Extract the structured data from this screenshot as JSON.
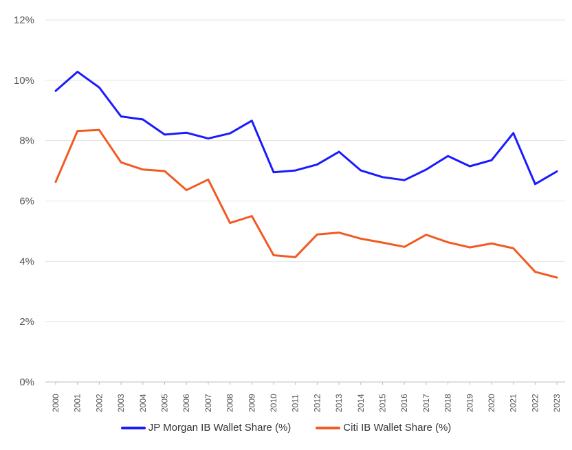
{
  "chart_data": {
    "type": "line",
    "x": [
      "2000",
      "2001",
      "2002",
      "2003",
      "2004",
      "2005",
      "2006",
      "2007",
      "2008",
      "2009",
      "2010",
      "2011",
      "2012",
      "2013",
      "2014",
      "2015",
      "2016",
      "2017",
      "2018",
      "2019",
      "2020",
      "2021",
      "2022",
      "2023"
    ],
    "series": [
      {
        "name": "JP Morgan IB Wallet Share (%)",
        "color": "#1a1aff",
        "values": [
          9.65,
          10.28,
          9.76,
          8.8,
          8.7,
          8.2,
          8.26,
          8.07,
          8.24,
          8.66,
          6.95,
          7.01,
          7.21,
          7.63,
          7.01,
          6.79,
          6.69,
          7.04,
          7.49,
          7.15,
          7.35,
          8.25,
          6.56,
          6.98
        ]
      },
      {
        "name": "Citi IB Wallet Share (%)",
        "color": "#f25a22",
        "values": [
          6.63,
          8.32,
          8.35,
          7.28,
          7.04,
          6.99,
          6.36,
          6.71,
          5.27,
          5.5,
          4.2,
          4.14,
          4.89,
          4.95,
          4.75,
          4.62,
          4.48,
          4.88,
          4.63,
          4.46,
          4.59,
          4.43,
          3.65,
          3.46
        ]
      }
    ],
    "y_ticks": [
      "0%",
      "2%",
      "4%",
      "6%",
      "8%",
      "10%",
      "12%"
    ],
    "ylim": [
      0,
      12
    ],
    "grid": true,
    "legend_position": "bottom",
    "title": "",
    "xlabel": "",
    "ylabel": ""
  }
}
